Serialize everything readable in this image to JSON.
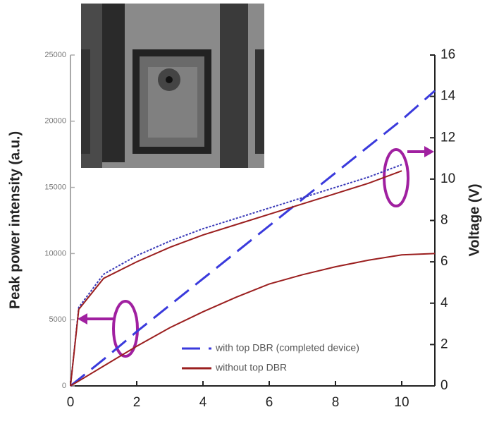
{
  "chart_data": {
    "type": "line",
    "y_label": "Peak power intensity (a.u.)",
    "y2_label": "Voltage (V)",
    "x": [
      0,
      0.25,
      1,
      2,
      3,
      4,
      5,
      6,
      7,
      8,
      9,
      10,
      11
    ],
    "series": [
      {
        "name": "with top DBR (completed device)",
        "color": "#3a3adc",
        "dash": "dashed",
        "axis": "y",
        "values": [
          0,
          500,
          2000,
          4100,
          6100,
          8100,
          10100,
          12100,
          14100,
          16100,
          18100,
          20100,
          22300
        ]
      },
      {
        "name": "without top DBR",
        "color": "#9b1f1f",
        "dash": "solid",
        "axis": "y",
        "values": [
          0,
          370,
          1500,
          3000,
          4400,
          5600,
          6700,
          7700,
          8400,
          9000,
          9500,
          9900,
          10000
        ]
      },
      {
        "color": "#3a3ab8",
        "dash": "dotted",
        "axis": "y2",
        "values": [
          0,
          3.8,
          5.4,
          6.3,
          7.0,
          7.6,
          8.1,
          8.6,
          9.1,
          9.6,
          10.1,
          10.7,
          null
        ]
      },
      {
        "color": "#9b1f1f",
        "dash": "solid",
        "axis": "y2",
        "values": [
          0,
          3.7,
          5.2,
          6.0,
          6.7,
          7.3,
          7.8,
          8.3,
          8.8,
          9.3,
          9.8,
          10.4,
          null
        ]
      }
    ],
    "xlim": [
      0,
      11
    ],
    "xticks": [
      0,
      2,
      4,
      6,
      8,
      10
    ],
    "ylim": [
      0,
      25000
    ],
    "yticks": [
      0,
      5000,
      10000,
      15000,
      20000,
      25000
    ],
    "y2lim": [
      0,
      16
    ],
    "y2ticks": [
      0,
      2,
      4,
      6,
      8,
      10,
      12,
      14,
      16
    ]
  }
}
